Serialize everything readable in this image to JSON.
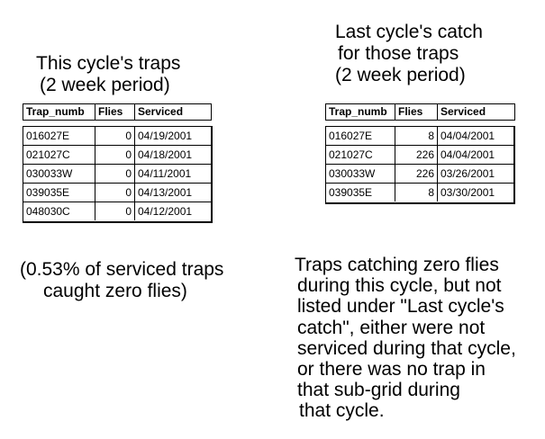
{
  "left_title": {
    "line1": "This cycle's traps",
    "line2": "(2 week period)"
  },
  "right_title": {
    "line1": "Last cycle's catch",
    "line2": "for those traps",
    "line3": "(2 week period)"
  },
  "columns": {
    "trap": "Trap_numb",
    "flies": "Flies",
    "serviced": "Serviced"
  },
  "left_rows": [
    {
      "trap": "016027E",
      "flies": "0",
      "serviced": "04/19/2001"
    },
    {
      "trap": "021027C",
      "flies": "0",
      "serviced": "04/18/2001"
    },
    {
      "trap": "030033W",
      "flies": "0",
      "serviced": "04/11/2001"
    },
    {
      "trap": "039035E",
      "flies": "0",
      "serviced": "04/13/2001"
    },
    {
      "trap": "048030C",
      "flies": "0",
      "serviced": "04/12/2001"
    }
  ],
  "right_rows": [
    {
      "trap": "016027E",
      "flies": "8",
      "serviced": "04/04/2001"
    },
    {
      "trap": "021027C",
      "flies": "226",
      "serviced": "04/04/2001"
    },
    {
      "trap": "030033W",
      "flies": "226",
      "serviced": "03/26/2001"
    },
    {
      "trap": "039035E",
      "flies": "8",
      "serviced": "03/30/2001"
    }
  ],
  "left_note": {
    "line1": "(0.53% of serviced traps",
    "line2": "caught zero flies)"
  },
  "right_note": [
    "Traps catching zero flies",
    "during this cycle, but not",
    "listed under \"Last cycle's",
    "catch\", either were not",
    "serviced during that cycle,",
    "or there was no trap in",
    "that sub-grid during",
    "that cycle."
  ]
}
